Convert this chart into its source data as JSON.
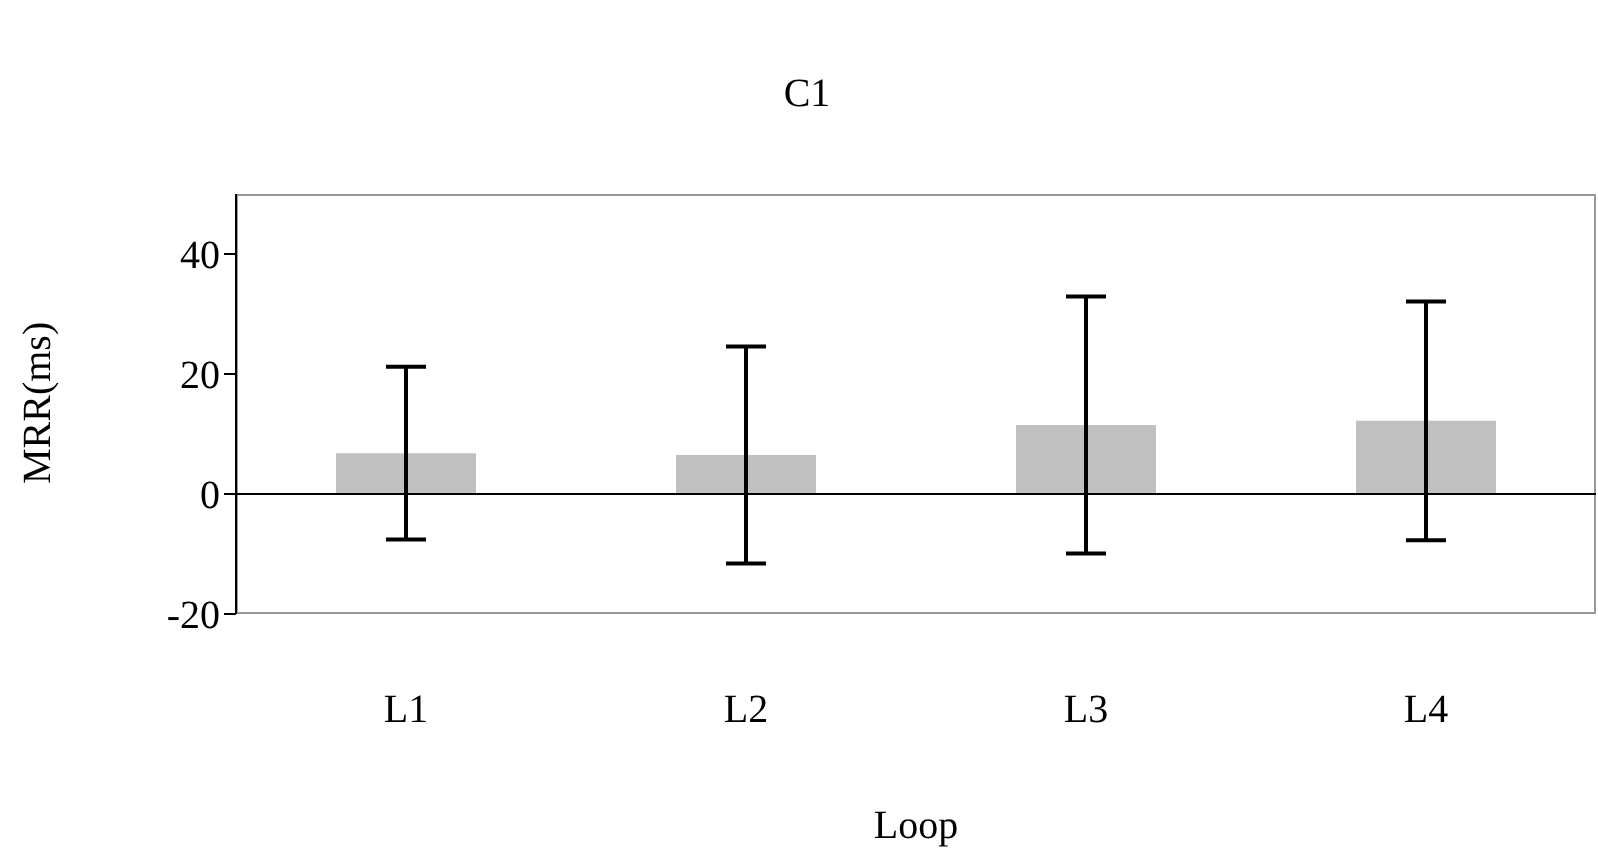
{
  "chart_data": {
    "type": "bar",
    "title": "C1",
    "xlabel": "Loop",
    "ylabel": "MRR(ms)",
    "categories": [
      "L1",
      "L2",
      "L3",
      "L4"
    ],
    "values": [
      6.8,
      6.5,
      11.5,
      12.2
    ],
    "errors": [
      14.4,
      18.1,
      21.4,
      19.9
    ],
    "color": "#c0c0c0",
    "ylim": [
      -20,
      50
    ],
    "yticks": [
      -20,
      0,
      20,
      40
    ],
    "ref_lines": [
      {
        "axis": "y",
        "value": 0,
        "color": "#000000"
      }
    ]
  }
}
